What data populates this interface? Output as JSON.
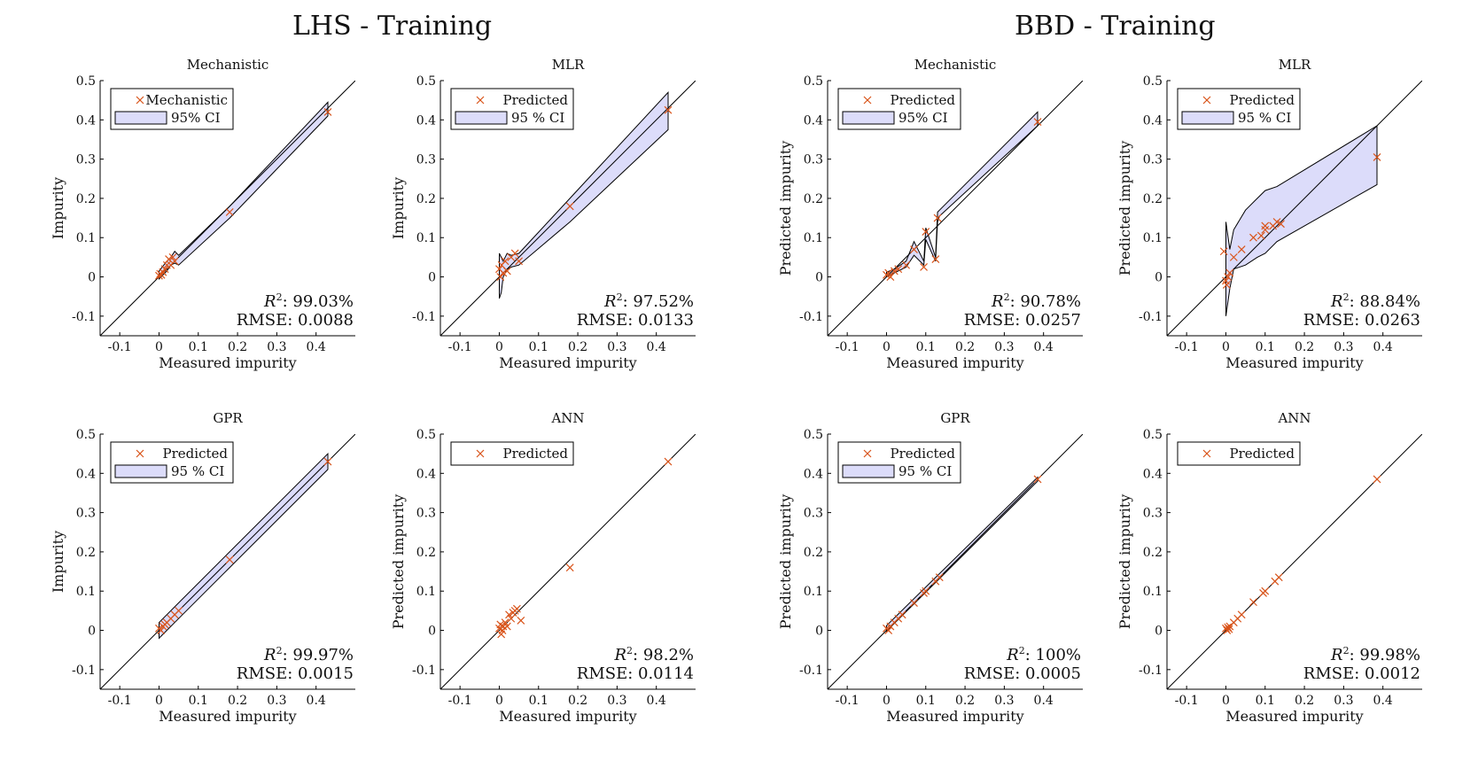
{
  "groups": [
    {
      "title": "LHS - Training"
    },
    {
      "title": "BBD - Training"
    }
  ],
  "colors": {
    "marker": "#d95319",
    "ci_fill": "#dcdcfa",
    "line": "#000000"
  },
  "chart_data": [
    {
      "type": "scatter",
      "group": "LHS - Training",
      "title": "Mechanistic",
      "xlabel": "Measured impurity",
      "ylabel": "Impurity",
      "xlim": [
        -0.15,
        0.5
      ],
      "ylim": [
        -0.15,
        0.5
      ],
      "xticks": [
        "-0.1",
        "0",
        "0.1",
        "0.2",
        "0.3",
        "0.4"
      ],
      "yticks": [
        "-0.1",
        "0",
        "0.1",
        "0.2",
        "0.3",
        "0.4",
        "0.5"
      ],
      "legend": {
        "placement": "top-left",
        "entries": [
          "Mechanistic",
          "95% CI"
        ]
      },
      "r2": "99.03%",
      "rmse": "RMSE: 0.0088",
      "identity_line": true,
      "points": {
        "x": [
          0.0,
          0.003,
          0.006,
          0.01,
          0.015,
          0.02,
          0.025,
          0.03,
          0.035,
          0.04,
          0.18,
          0.43
        ],
        "y": [
          0.003,
          0.008,
          0.005,
          0.012,
          0.02,
          0.03,
          0.045,
          0.03,
          0.05,
          0.04,
          0.165,
          0.42
        ]
      },
      "ci": {
        "x": [
          0.0,
          0.02,
          0.03,
          0.04,
          0.05,
          0.18,
          0.43
        ],
        "lower": [
          -0.005,
          0.015,
          0.03,
          0.035,
          0.03,
          0.15,
          0.41
        ],
        "upper": [
          0.015,
          0.04,
          0.05,
          0.065,
          0.055,
          0.18,
          0.445
        ]
      }
    },
    {
      "type": "scatter",
      "group": "LHS - Training",
      "title": "MLR",
      "xlabel": "Measured impurity",
      "ylabel": "Impurity",
      "xlim": [
        -0.15,
        0.5
      ],
      "ylim": [
        -0.15,
        0.5
      ],
      "xticks": [
        "-0.1",
        "0",
        "0.1",
        "0.2",
        "0.3",
        "0.4"
      ],
      "yticks": [
        "-0.1",
        "0",
        "0.1",
        "0.2",
        "0.3",
        "0.4",
        "0.5"
      ],
      "legend": {
        "placement": "top-left",
        "entries": [
          "Predicted",
          "95 % CI"
        ]
      },
      "r2": "97.52%",
      "rmse": "RMSE: 0.0133",
      "identity_line": true,
      "points": {
        "x": [
          0.0,
          0.003,
          0.006,
          0.01,
          0.015,
          0.02,
          0.03,
          0.04,
          0.05,
          0.18,
          0.43
        ],
        "y": [
          0.02,
          0.0,
          0.03,
          0.01,
          0.04,
          0.015,
          0.05,
          0.06,
          0.04,
          0.18,
          0.425
        ],
        "note_omit": null
      },
      "ci": {
        "x": [
          0.0,
          0.005,
          0.01,
          0.02,
          0.03,
          0.05,
          0.18,
          0.43
        ],
        "lower": [
          -0.055,
          -0.04,
          0.0,
          0.02,
          0.025,
          0.03,
          0.14,
          0.375
        ],
        "upper": [
          0.06,
          0.05,
          0.04,
          0.06,
          0.055,
          0.06,
          0.2,
          0.47
        ]
      }
    },
    {
      "type": "scatter",
      "group": "BBD - Training",
      "title": "Mechanistic",
      "xlabel": "Measured impurity",
      "ylabel": "Predicted impurity",
      "xlim": [
        -0.15,
        0.5
      ],
      "ylim": [
        -0.15,
        0.5
      ],
      "xticks": [
        "-0.1",
        "0",
        "0.1",
        "0.2",
        "0.3",
        "0.4"
      ],
      "yticks": [
        "-0.1",
        "0",
        "0.1",
        "0.2",
        "0.3",
        "0.4",
        "0.5"
      ],
      "legend": {
        "placement": "top-left",
        "entries": [
          "Predicted",
          "95% CI"
        ]
      },
      "r2": "90.78%",
      "rmse": "RMSE: 0.0257",
      "identity_line": true,
      "points": {
        "x": [
          0.0,
          0.005,
          0.01,
          0.02,
          0.03,
          0.05,
          0.07,
          0.095,
          0.1,
          0.125,
          0.13,
          0.385
        ],
        "y": [
          0.005,
          0.01,
          0.0,
          0.015,
          0.02,
          0.03,
          0.07,
          0.025,
          0.115,
          0.045,
          0.15,
          0.395
        ]
      },
      "ci": {
        "x": [
          0.0,
          0.02,
          0.05,
          0.07,
          0.095,
          0.1,
          0.125,
          0.13,
          0.135,
          0.385
        ],
        "lower": [
          0.0,
          0.01,
          0.025,
          0.055,
          0.03,
          0.095,
          0.04,
          0.14,
          0.155,
          0.385
        ],
        "upper": [
          0.012,
          0.02,
          0.04,
          0.09,
          0.04,
          0.125,
          0.05,
          0.165,
          0.17,
          0.42
        ]
      }
    },
    {
      "type": "scatter",
      "group": "BBD - Training",
      "title": "MLR",
      "xlabel": "Measured impurity",
      "ylabel": "Predicted impurity",
      "xlim": [
        -0.15,
        0.5
      ],
      "ylim": [
        -0.15,
        0.5
      ],
      "xticks": [
        "-0.1",
        "0",
        "0.1",
        "0.2",
        "0.3",
        "0.4"
      ],
      "yticks": [
        "-0.1",
        "0",
        "0.1",
        "0.2",
        "0.3",
        "0.4",
        "0.5"
      ],
      "legend": {
        "placement": "top-left",
        "entries": [
          "Predicted",
          "95 % CI"
        ]
      },
      "r2": "88.84%",
      "rmse": "RMSE: 0.0263",
      "identity_line": true,
      "points": {
        "x": [
          -0.005,
          0.0,
          0.002,
          0.005,
          0.01,
          0.02,
          0.04,
          0.07,
          0.09,
          0.1,
          0.1,
          0.12,
          0.13,
          0.14,
          0.385
        ],
        "y": [
          0.065,
          -0.01,
          -0.02,
          0.0,
          0.01,
          0.05,
          0.07,
          0.1,
          0.105,
          0.13,
          0.12,
          0.13,
          0.14,
          0.135,
          0.305
        ]
      },
      "ci": {
        "x": [
          0.0,
          0.01,
          0.02,
          0.05,
          0.08,
          0.1,
          0.13,
          0.385
        ],
        "lower": [
          -0.1,
          -0.03,
          0.02,
          0.03,
          0.05,
          0.06,
          0.09,
          0.235
        ],
        "upper": [
          0.14,
          0.07,
          0.12,
          0.17,
          0.2,
          0.22,
          0.23,
          0.385
        ]
      }
    },
    {
      "type": "scatter",
      "group": "LHS - Training",
      "title": "GPR",
      "xlabel": "Measured impurity",
      "ylabel": "Impurity",
      "xlim": [
        -0.15,
        0.5
      ],
      "ylim": [
        -0.15,
        0.5
      ],
      "xticks": [
        "-0.1",
        "0",
        "0.1",
        "0.2",
        "0.3",
        "0.4"
      ],
      "yticks": [
        "-0.1",
        "0",
        "0.1",
        "0.2",
        "0.3",
        "0.4",
        "0.5"
      ],
      "legend": {
        "placement": "top-left",
        "entries": [
          "Predicted",
          "95 % CI"
        ]
      },
      "r2": "99.97%",
      "rmse": "RMSE: 0.0015",
      "identity_line": true,
      "points": {
        "x": [
          0.0,
          0.005,
          0.01,
          0.015,
          0.02,
          0.03,
          0.04,
          0.05,
          0.18,
          0.43
        ],
        "y": [
          0.005,
          0.0,
          0.01,
          0.015,
          0.02,
          0.03,
          0.04,
          0.05,
          0.18,
          0.43
        ]
      },
      "ci": {
        "x": [
          0.0,
          0.05,
          0.18,
          0.43
        ],
        "lower": [
          -0.02,
          0.03,
          0.16,
          0.41
        ],
        "upper": [
          0.02,
          0.07,
          0.2,
          0.45
        ]
      }
    },
    {
      "type": "scatter",
      "group": "LHS - Training",
      "title": "ANN",
      "xlabel": "Measured impurity",
      "ylabel": "Predicted impurity",
      "xlim": [
        -0.15,
        0.5
      ],
      "ylim": [
        -0.15,
        0.5
      ],
      "xticks": [
        "-0.1",
        "0",
        "0.1",
        "0.2",
        "0.3",
        "0.4"
      ],
      "yticks": [
        "-0.1",
        "0",
        "0.1",
        "0.2",
        "0.3",
        "0.4",
        "0.5"
      ],
      "legend": {
        "placement": "top-left",
        "entries": [
          "Predicted"
        ]
      },
      "r2": "98.2%",
      "rmse": "RMSE: 0.0114",
      "identity_line": true,
      "points": {
        "x": [
          0.0,
          0.003,
          0.005,
          0.008,
          0.01,
          0.015,
          0.02,
          0.025,
          0.03,
          0.035,
          0.04,
          0.045,
          0.055,
          0.18,
          0.43
        ],
        "y": [
          0.005,
          0.015,
          -0.01,
          0.0,
          0.01,
          0.02,
          0.01,
          0.04,
          0.03,
          0.045,
          0.05,
          0.055,
          0.025,
          0.16,
          0.43
        ]
      }
    },
    {
      "type": "scatter",
      "group": "BBD - Training",
      "title": "GPR",
      "xlabel": "Measured impurity",
      "ylabel": "Predicted impurity",
      "xlim": [
        -0.15,
        0.5
      ],
      "ylim": [
        -0.15,
        0.5
      ],
      "xticks": [
        "-0.1",
        "0",
        "0.1",
        "0.2",
        "0.3",
        "0.4"
      ],
      "yticks": [
        "-0.1",
        "0",
        "0.1",
        "0.2",
        "0.3",
        "0.4",
        "0.5"
      ],
      "legend": {
        "placement": "top-left",
        "entries": [
          "Predicted",
          "95 % CI"
        ]
      },
      "r2": "100%",
      "rmse": "RMSE: 0.0005",
      "identity_line": true,
      "points": {
        "x": [
          0.0,
          0.005,
          0.01,
          0.02,
          0.03,
          0.04,
          0.07,
          0.095,
          0.1,
          0.125,
          0.135,
          0.385
        ],
        "y": [
          0.005,
          0.0,
          0.01,
          0.02,
          0.03,
          0.04,
          0.07,
          0.095,
          0.1,
          0.125,
          0.135,
          0.385
        ]
      },
      "ci": {
        "x": [
          0.0,
          0.385
        ],
        "lower": [
          -0.002,
          0.38
        ],
        "upper": [
          0.012,
          0.39
        ]
      }
    },
    {
      "type": "scatter",
      "group": "BBD - Training",
      "title": "ANN",
      "xlabel": "Measured impurity",
      "ylabel": "Predicted impurity",
      "xlim": [
        -0.15,
        0.5
      ],
      "ylim": [
        -0.15,
        0.5
      ],
      "xticks": [
        "-0.1",
        "0",
        "0.1",
        "0.2",
        "0.3",
        "0.4"
      ],
      "yticks": [
        "-0.1",
        "0",
        "0.1",
        "0.2",
        "0.3",
        "0.4",
        "0.5"
      ],
      "legend": {
        "placement": "top-left",
        "entries": [
          "Predicted"
        ]
      },
      "r2": "99.98%",
      "rmse": "RMSE: 0.0012",
      "identity_line": true,
      "points": {
        "x": [
          0.0,
          0.003,
          0.005,
          0.008,
          0.01,
          0.02,
          0.03,
          0.04,
          0.07,
          0.095,
          0.1,
          0.125,
          0.135,
          0.385
        ],
        "y": [
          0.005,
          0.0,
          0.008,
          0.003,
          0.01,
          0.02,
          0.03,
          0.04,
          0.072,
          0.095,
          0.1,
          0.125,
          0.135,
          0.385
        ]
      }
    }
  ]
}
